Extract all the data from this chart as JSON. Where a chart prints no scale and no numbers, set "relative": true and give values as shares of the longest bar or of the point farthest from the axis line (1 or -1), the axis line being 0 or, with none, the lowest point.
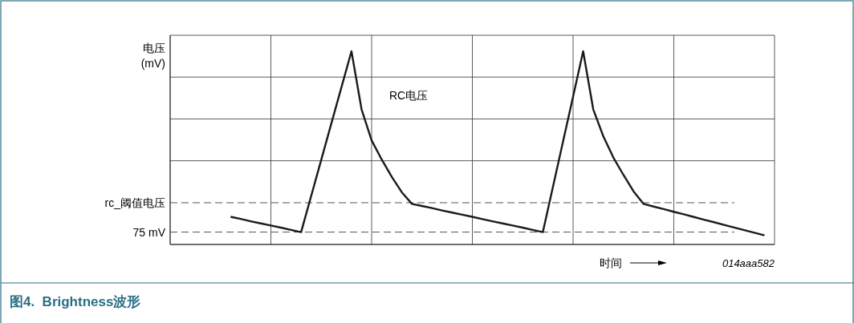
{
  "chart_data": {
    "type": "line",
    "relative": true,
    "title": "图4.  Brightness波形",
    "ylabel": "电压\n(mV)",
    "xlabel": "时间",
    "annotations": [
      "RC电压",
      "014aaa582"
    ],
    "categories": [
      null,
      null,
      null,
      null,
      null,
      null,
      null,
      null,
      null,
      null,
      null,
      null,
      null,
      null,
      null,
      null,
      null,
      null,
      null,
      null,
      null,
      null,
      null,
      null,
      null,
      null,
      null,
      null,
      null,
      null,
      null,
      null,
      null,
      null,
      null,
      null,
      null,
      null,
      null,
      null,
      null,
      null,
      null,
      null,
      null,
      null,
      null,
      null,
      null,
      null,
      null,
      null,
      null,
      null,
      null,
      null,
      null,
      null,
      null,
      null,
      null
    ],
    "series": [
      {
        "color": "#1a1a1a",
        "values": [
          null,
          null,
          null,
          null,
          null,
          null,
          0.143,
          0.132,
          0.12,
          0.109,
          0.098,
          0.087,
          0.075,
          0.064,
          0.251,
          0.438,
          0.626,
          0.813,
          1.0,
          0.7,
          0.539,
          0.44,
          0.35,
          0.27,
          0.21,
          0.199,
          0.188,
          0.176,
          0.165,
          0.154,
          0.143,
          0.131,
          0.12,
          0.109,
          0.098,
          0.087,
          0.075,
          0.064,
          0.298,
          0.532,
          0.766,
          1.0,
          0.7,
          0.56,
          0.45,
          0.36,
          0.275,
          0.21,
          0.196,
          0.183,
          0.169,
          0.156,
          0.142,
          0.128,
          0.115,
          0.101,
          0.088,
          0.074,
          0.061,
          0.047,
          null
        ]
      }
    ],
    "ref_lines": [
      {
        "axis": "y",
        "value": 0.216,
        "label": "rc_阈值电压",
        "color": "#555555",
        "line_style": "dashed"
      },
      {
        "axis": "y",
        "value": 0.064,
        "label": "75 mV",
        "color": "#555555",
        "line_style": "dashed"
      }
    ],
    "grid": true,
    "marker": "none",
    "line_style": "solid"
  }
}
